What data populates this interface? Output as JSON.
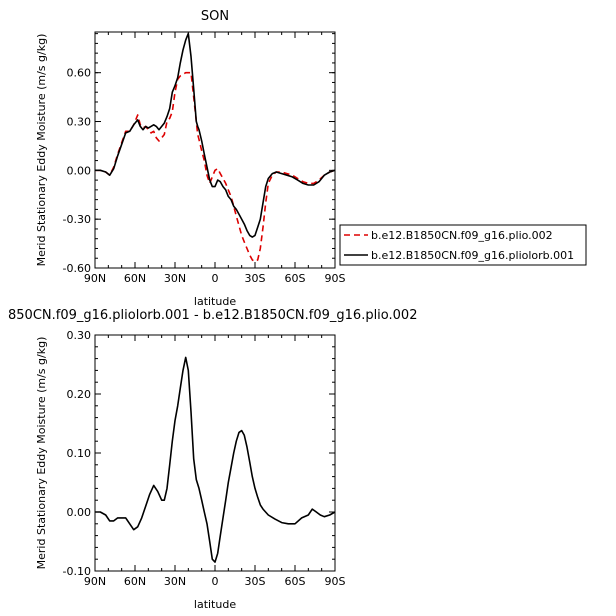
{
  "chart_data": [
    {
      "type": "line",
      "title": "SON",
      "xlabel": "latitude",
      "ylabel": "Merid Stationary Eddy Moisture (m/s g/kg)",
      "xlim": [
        90,
        -90
      ],
      "ylim": [
        -0.6,
        0.85
      ],
      "x_ticks": [
        90,
        60,
        30,
        0,
        -30,
        -60,
        -90
      ],
      "x_tick_labels": [
        "90N",
        "60N",
        "30N",
        "0",
        "30S",
        "60S",
        "90S"
      ],
      "y_ticks": [
        -0.6,
        -0.3,
        0.0,
        0.3,
        0.6
      ],
      "y_tick_labels": [
        "-0.60",
        "-0.30",
        "0.00",
        "0.30",
        "0.60"
      ],
      "legend_position": "outside-right",
      "series": [
        {
          "name": "b.e12.B1850CN.f09_g16.plio.002",
          "color": "#dd0000",
          "dash": "dashed",
          "x": [
            90,
            86,
            82,
            79,
            76,
            73,
            70,
            67,
            64,
            61,
            58,
            56,
            54,
            52,
            50,
            48,
            46,
            44,
            42,
            40,
            38,
            36,
            34,
            32,
            30,
            28,
            26,
            24,
            22,
            20,
            18,
            16,
            14,
            13,
            12,
            10,
            8,
            6,
            4,
            2,
            0,
            -2,
            -4,
            -6,
            -8,
            -10,
            -12,
            -14,
            -16,
            -18,
            -20,
            -22,
            -24,
            -26,
            -28,
            -30,
            -32,
            -34,
            -36,
            -38,
            -40,
            -43,
            -46,
            -50,
            -54,
            -58,
            -62,
            -66,
            -70,
            -74,
            -78,
            -82,
            -86,
            -90
          ],
          "y": [
            0.0,
            0.0,
            -0.01,
            -0.03,
            0.02,
            0.1,
            0.17,
            0.24,
            0.24,
            0.28,
            0.34,
            0.28,
            0.26,
            0.27,
            0.25,
            0.23,
            0.24,
            0.2,
            0.18,
            0.2,
            0.22,
            0.3,
            0.32,
            0.36,
            0.48,
            0.56,
            0.58,
            0.59,
            0.6,
            0.6,
            0.6,
            0.45,
            0.3,
            0.22,
            0.19,
            0.12,
            0.06,
            -0.03,
            -0.08,
            -0.04,
            0.0,
            0.01,
            -0.02,
            -0.05,
            -0.08,
            -0.12,
            -0.16,
            -0.22,
            -0.28,
            -0.34,
            -0.4,
            -0.44,
            -0.48,
            -0.52,
            -0.55,
            -0.56,
            -0.55,
            -0.48,
            -0.35,
            -0.2,
            -0.08,
            -0.03,
            -0.01,
            -0.01,
            -0.02,
            -0.03,
            -0.05,
            -0.07,
            -0.08,
            -0.08,
            -0.06,
            -0.03,
            -0.01,
            0.0
          ]
        },
        {
          "name": "b.e12.B1850CN.f09_g16.pliolorb.001",
          "color": "#000000",
          "dash": "solid",
          "x": [
            90,
            86,
            82,
            79,
            76,
            73,
            70,
            67,
            64,
            61,
            58,
            56,
            54,
            52,
            50,
            48,
            46,
            44,
            42,
            40,
            38,
            36,
            34,
            32,
            30,
            28,
            26,
            24,
            22,
            20,
            18,
            16,
            14,
            13,
            12,
            10,
            8,
            6,
            4,
            2,
            0,
            -2,
            -4,
            -6,
            -8,
            -10,
            -12,
            -14,
            -16,
            -18,
            -20,
            -22,
            -24,
            -26,
            -28,
            -30,
            -32,
            -34,
            -36,
            -38,
            -40,
            -43,
            -46,
            -50,
            -54,
            -58,
            -62,
            -66,
            -70,
            -74,
            -78,
            -82,
            -86,
            -90
          ],
          "y": [
            0.0,
            0.0,
            -0.01,
            -0.03,
            0.01,
            0.09,
            0.16,
            0.23,
            0.24,
            0.28,
            0.31,
            0.27,
            0.25,
            0.27,
            0.26,
            0.27,
            0.28,
            0.27,
            0.25,
            0.27,
            0.29,
            0.33,
            0.38,
            0.48,
            0.52,
            0.57,
            0.66,
            0.74,
            0.8,
            0.84,
            0.7,
            0.5,
            0.3,
            0.27,
            0.25,
            0.18,
            0.1,
            0.02,
            -0.06,
            -0.1,
            -0.1,
            -0.06,
            -0.07,
            -0.1,
            -0.12,
            -0.16,
            -0.18,
            -0.22,
            -0.24,
            -0.27,
            -0.3,
            -0.33,
            -0.37,
            -0.4,
            -0.41,
            -0.4,
            -0.35,
            -0.3,
            -0.2,
            -0.1,
            -0.05,
            -0.02,
            -0.01,
            -0.02,
            -0.03,
            -0.04,
            -0.06,
            -0.08,
            -0.09,
            -0.09,
            -0.07,
            -0.03,
            -0.01,
            0.0
          ]
        }
      ]
    },
    {
      "type": "line",
      "title": "850CN.f09_g16.pliolorb.001 - b.e12.B1850CN.f09_g16.plio.002",
      "xlabel": "latitude",
      "ylabel": "Merid Stationary Eddy Moisture (m/s g/kg)",
      "xlim": [
        90,
        -90
      ],
      "ylim": [
        -0.1,
        0.3
      ],
      "x_ticks": [
        90,
        60,
        30,
        0,
        -30,
        -60,
        -90
      ],
      "x_tick_labels": [
        "90N",
        "60N",
        "30N",
        "0",
        "30S",
        "60S",
        "90S"
      ],
      "y_ticks": [
        -0.1,
        0.0,
        0.1,
        0.2,
        0.3
      ],
      "y_tick_labels": [
        "-0.10",
        "0.00",
        "0.10",
        "0.20",
        "0.30"
      ],
      "series": [
        {
          "color": "#000000",
          "dash": "solid",
          "x": [
            90,
            86,
            82,
            79,
            76,
            73,
            70,
            67,
            64,
            61,
            58,
            55,
            52,
            49,
            46,
            43,
            40,
            38,
            36,
            34,
            32,
            30,
            28,
            26,
            24,
            22,
            20,
            18,
            16,
            14,
            12,
            10,
            8,
            6,
            4,
            2,
            0,
            -2,
            -4,
            -6,
            -8,
            -10,
            -12,
            -14,
            -16,
            -18,
            -20,
            -22,
            -24,
            -26,
            -28,
            -30,
            -32,
            -34,
            -36,
            -40,
            -45,
            -50,
            -55,
            -60,
            -65,
            -70,
            -73,
            -76,
            -79,
            -82,
            -86,
            -90
          ],
          "y": [
            0.0,
            0.0,
            -0.005,
            -0.015,
            -0.015,
            -0.01,
            -0.01,
            -0.01,
            -0.02,
            -0.03,
            -0.025,
            -0.01,
            0.01,
            0.03,
            0.045,
            0.035,
            0.02,
            0.02,
            0.04,
            0.08,
            0.12,
            0.155,
            0.18,
            0.21,
            0.24,
            0.262,
            0.24,
            0.17,
            0.09,
            0.055,
            0.04,
            0.02,
            0.0,
            -0.02,
            -0.05,
            -0.08,
            -0.085,
            -0.07,
            -0.04,
            -0.01,
            0.02,
            0.05,
            0.075,
            0.1,
            0.12,
            0.135,
            0.138,
            0.13,
            0.11,
            0.085,
            0.06,
            0.04,
            0.025,
            0.012,
            0.005,
            -0.005,
            -0.012,
            -0.018,
            -0.02,
            -0.02,
            -0.01,
            -0.005,
            0.005,
            0.0,
            -0.005,
            -0.008,
            -0.005,
            0.0
          ]
        }
      ]
    }
  ]
}
